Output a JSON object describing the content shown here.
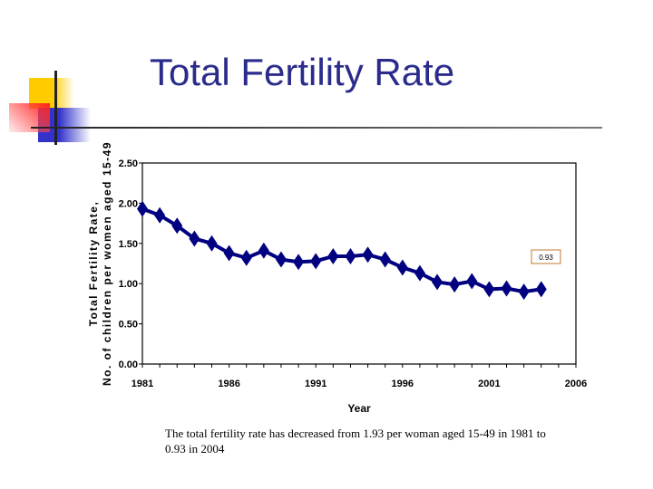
{
  "slide": {
    "title": "Total Fertility Rate",
    "caption": "The total fertility rate has decreased from 1.93 per woman aged 15-49 in 1981 to 0.93 in 2004"
  },
  "chart_data": {
    "type": "line",
    "title": "",
    "xlabel": "Year",
    "ylabel_line1": "Total Fertility Rate,",
    "ylabel_line2": "No. of children per women aged 15-49",
    "xlim": [
      1981,
      2006
    ],
    "ylim": [
      0,
      2.5
    ],
    "x_ticks": [
      "1981",
      "1986",
      "1991",
      "1996",
      "2001",
      "2006"
    ],
    "y_ticks": [
      "0.00",
      "0.50",
      "1.00",
      "1.50",
      "2.00",
      "2.50"
    ],
    "grid": false,
    "series_color": "#000080",
    "marker": "diamond",
    "annotation": "0.93",
    "x": [
      1981,
      1982,
      1983,
      1984,
      1985,
      1986,
      1987,
      1988,
      1989,
      1990,
      1991,
      1992,
      1993,
      1994,
      1995,
      1996,
      1997,
      1998,
      1999,
      2000,
      2001,
      2002,
      2003,
      2004
    ],
    "values": [
      1.93,
      1.85,
      1.72,
      1.56,
      1.5,
      1.38,
      1.32,
      1.41,
      1.3,
      1.27,
      1.28,
      1.34,
      1.34,
      1.36,
      1.3,
      1.2,
      1.13,
      1.02,
      0.99,
      1.03,
      0.93,
      0.94,
      0.9,
      0.93
    ]
  }
}
